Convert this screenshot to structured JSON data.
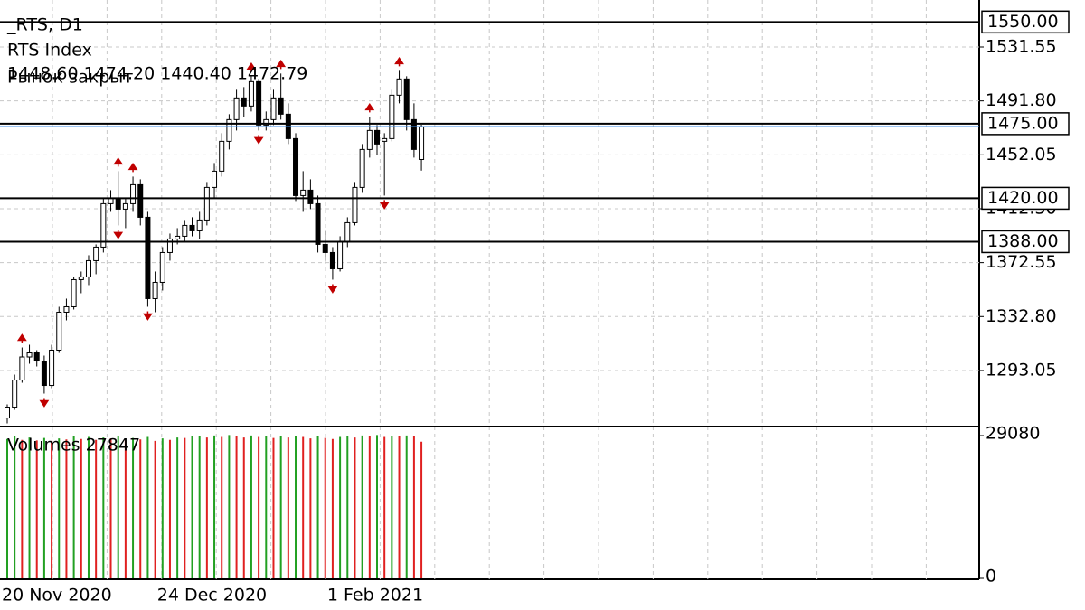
{
  "chart_data": {
    "type": "candlestick",
    "title": "_RTS, D1",
    "subtitle": "RTS Index",
    "ohlc_label": "1448.60 1474.20 1440.40 1472.79",
    "status": "Рынок закрыт",
    "categories": [
      "20 Nov 2020",
      null,
      null,
      null,
      null,
      null,
      null,
      null,
      null,
      null,
      null,
      null,
      null,
      null,
      null,
      null,
      null,
      null,
      null,
      null,
      null,
      "24 Dec 2020",
      null,
      null,
      null,
      null,
      null,
      null,
      null,
      null,
      null,
      null,
      null,
      null,
      null,
      null,
      null,
      null,
      null,
      null,
      null,
      null,
      null,
      null,
      "1 Feb 2021",
      null,
      null,
      null,
      null,
      null,
      null,
      null,
      null,
      null,
      null,
      null,
      null
    ],
    "open": [
      1258,
      1266,
      1286,
      1303,
      1306,
      1300,
      1282,
      1308,
      1336,
      1340,
      1360,
      1362,
      1374,
      1384,
      1416,
      1420,
      1412,
      1416,
      1430,
      1406,
      1346,
      1358,
      1380,
      1390,
      1392,
      1400,
      1396,
      1404,
      1428,
      1440,
      1462,
      1478,
      1494,
      1488,
      1506,
      1474,
      1478,
      1494,
      1482,
      1464,
      1422,
      1426,
      1416,
      1386,
      1380,
      1368,
      1388,
      1402,
      1428,
      1456,
      1470,
      1462,
      1464,
      1496,
      1508,
      1478,
      1448.6
    ],
    "high": [
      1268,
      1290,
      1310,
      1312,
      1308,
      1304,
      1312,
      1340,
      1346,
      1362,
      1366,
      1378,
      1386,
      1420,
      1426,
      1440,
      1420,
      1436,
      1434,
      1410,
      1366,
      1384,
      1394,
      1398,
      1404,
      1406,
      1410,
      1432,
      1446,
      1468,
      1482,
      1500,
      1502,
      1510,
      1508,
      1484,
      1500,
      1512,
      1490,
      1468,
      1440,
      1434,
      1422,
      1396,
      1384,
      1392,
      1406,
      1432,
      1460,
      1480,
      1474,
      1468,
      1500,
      1514,
      1510,
      1490,
      1474.2
    ],
    "low": [
      1254,
      1264,
      1284,
      1298,
      1296,
      1276,
      1280,
      1306,
      1330,
      1338,
      1350,
      1356,
      1364,
      1380,
      1410,
      1400,
      1398,
      1410,
      1400,
      1340,
      1336,
      1352,
      1374,
      1386,
      1388,
      1392,
      1390,
      1400,
      1420,
      1436,
      1456,
      1470,
      1480,
      1484,
      1470,
      1470,
      1474,
      1478,
      1460,
      1418,
      1410,
      1412,
      1380,
      1374,
      1360,
      1366,
      1384,
      1400,
      1424,
      1450,
      1452,
      1422,
      1462,
      1490,
      1470,
      1450,
      1440.4
    ],
    "close": [
      1266,
      1286,
      1303,
      1306,
      1300,
      1282,
      1308,
      1336,
      1340,
      1360,
      1362,
      1374,
      1384,
      1416,
      1420,
      1412,
      1416,
      1430,
      1406,
      1346,
      1358,
      1380,
      1390,
      1392,
      1400,
      1396,
      1404,
      1428,
      1440,
      1462,
      1478,
      1494,
      1488,
      1506,
      1474,
      1478,
      1494,
      1482,
      1464,
      1422,
      1426,
      1416,
      1386,
      1380,
      1368,
      1388,
      1402,
      1428,
      1456,
      1470,
      1460,
      1464,
      1496,
      1508,
      1478,
      1456,
      1472.79
    ],
    "fractals_up": [
      null,
      null,
      1310,
      null,
      null,
      null,
      null,
      null,
      null,
      null,
      null,
      null,
      null,
      null,
      null,
      1440,
      null,
      1436,
      null,
      null,
      null,
      null,
      null,
      null,
      null,
      null,
      null,
      null,
      null,
      null,
      null,
      null,
      null,
      1510,
      null,
      null,
      null,
      1512,
      null,
      null,
      null,
      null,
      null,
      null,
      null,
      null,
      null,
      null,
      null,
      1480,
      null,
      null,
      null,
      1514,
      null,
      null,
      null
    ],
    "fractals_down": [
      null,
      null,
      null,
      null,
      null,
      1276,
      null,
      null,
      null,
      null,
      null,
      null,
      null,
      null,
      null,
      1400,
      null,
      null,
      null,
      1340,
      null,
      null,
      null,
      null,
      null,
      null,
      null,
      null,
      null,
      null,
      null,
      null,
      null,
      null,
      1470,
      null,
      null,
      null,
      null,
      null,
      null,
      null,
      null,
      null,
      1360,
      null,
      null,
      null,
      null,
      null,
      null,
      1422,
      null,
      null,
      null,
      null,
      null
    ],
    "fractal_color": "#c00000",
    "ylim": [
      1251.7,
      1566.2
    ],
    "yticks": [
      1293.05,
      {
        "value": 1332.8,
        "label": "1332.80"
      },
      1372.55,
      {
        "value": 1412.3,
        "label": "1412.30"
      },
      1452.05,
      {
        "value": 1491.8,
        "label": "1491.80"
      },
      1531.55
    ],
    "levels": [
      {
        "value": 1550,
        "label": "1550.00"
      },
      {
        "value": 1475,
        "label": "1475.00"
      },
      {
        "value": 1420,
        "label": "1420.00"
      },
      {
        "value": 1388,
        "label": "1388.00"
      }
    ],
    "last_price_color": "#3c8ee8",
    "grid": true,
    "volume": {
      "label": "Volumes 27847",
      "values": [
        28400,
        28900,
        28200,
        28700,
        28100,
        28600,
        28000,
        28500,
        28300,
        28900,
        28400,
        28800,
        28200,
        28700,
        28500,
        28900,
        28100,
        28600,
        28300,
        28800,
        28000,
        28500,
        28200,
        28700,
        28600,
        28900,
        29000,
        28700,
        29100,
        28800,
        29200,
        28900,
        28700,
        29100,
        28800,
        29000,
        28600,
        28900,
        28700,
        29000,
        28800,
        28500,
        28900,
        28600,
        28400,
        28800,
        29000,
        28700,
        29100,
        28900,
        29200,
        28800,
        29000,
        28900,
        29100,
        29000,
        27847
      ],
      "up_color": "#22a022",
      "down_color": "#e02020",
      "ylim": [
        0,
        29080
      ],
      "yticks": [
        0,
        29080
      ]
    }
  }
}
